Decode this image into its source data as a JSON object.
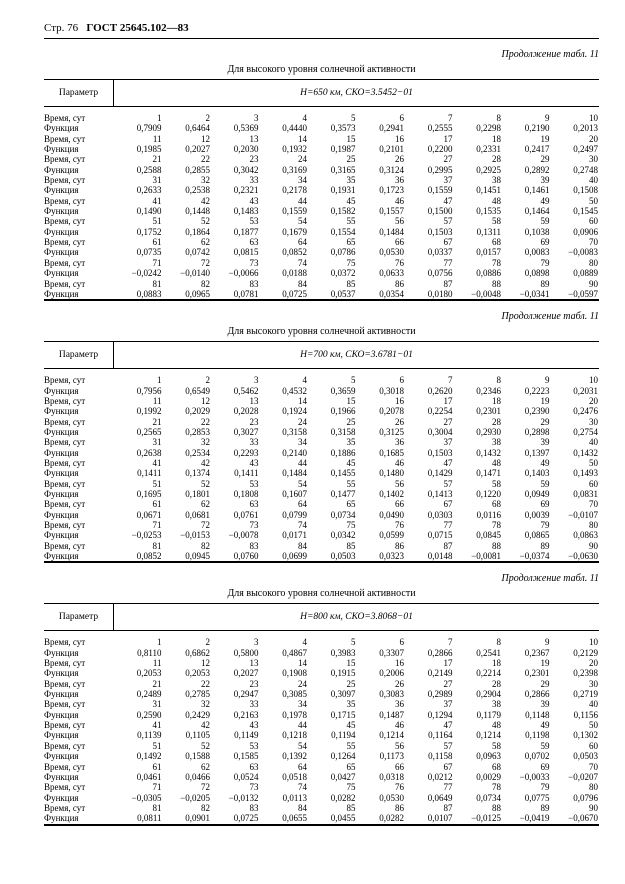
{
  "header": {
    "page_str": "Стр. 76",
    "gost": "ГОСТ 25645.102—83"
  },
  "cont_label": "Продолжение табл. 11",
  "sub_header": "Для высокого уровня солнечной активности",
  "blocks": [
    {
      "param_label": "Параметр",
      "h_label": "H=650 км, СКО=3.5452−01",
      "rows": [
        {
          "label": "Время, сут",
          "vals": [
            "1",
            "2",
            "3",
            "4",
            "5",
            "6",
            "7",
            "8",
            "9",
            "10"
          ]
        },
        {
          "label": "Функция",
          "vals": [
            "0,7909",
            "0,6464",
            "0,5369",
            "0,4440",
            "0,3573",
            "0,2941",
            "0,2555",
            "0,2298",
            "0,2190",
            "0,2013"
          ]
        },
        {
          "label": "Время, сут",
          "vals": [
            "11",
            "12",
            "13",
            "14",
            "15",
            "16",
            "17",
            "18",
            "19",
            "20"
          ]
        },
        {
          "label": "Функция",
          "vals": [
            "0,1985",
            "0,2027",
            "0,2030",
            "0,1932",
            "0,1987",
            "0,2101",
            "0,2200",
            "0,2331",
            "0,2417",
            "0,2497"
          ]
        },
        {
          "label": "Время, сут",
          "vals": [
            "21",
            "22",
            "23",
            "24",
            "25",
            "26",
            "27",
            "28",
            "29",
            "30"
          ]
        },
        {
          "label": "Функция",
          "vals": [
            "0,2588",
            "0,2855",
            "0,3042",
            "0,3169",
            "0,3165",
            "0,3124",
            "0,2995",
            "0,2925",
            "0,2892",
            "0,2748"
          ]
        },
        {
          "label": "Время, сут",
          "vals": [
            "31",
            "32",
            "33",
            "34",
            "35",
            "36",
            "37",
            "38",
            "39",
            "40"
          ]
        },
        {
          "label": "Функция",
          "vals": [
            "0,2633",
            "0,2538",
            "0,2321",
            "0,2178",
            "0,1931",
            "0,1723",
            "0,1559",
            "0,1451",
            "0,1461",
            "0,1508"
          ]
        },
        {
          "label": "Время, сут",
          "vals": [
            "41",
            "42",
            "43",
            "44",
            "45",
            "46",
            "47",
            "48",
            "49",
            "50"
          ]
        },
        {
          "label": "Функция",
          "vals": [
            "0,1490",
            "0,1448",
            "0,1483",
            "0,1559",
            "0,1582",
            "0,1557",
            "0,1500",
            "0,1535",
            "0,1464",
            "0,1545"
          ]
        },
        {
          "label": "Время, сут",
          "vals": [
            "51",
            "52",
            "53",
            "54",
            "55",
            "56",
            "57",
            "58",
            "59",
            "60"
          ]
        },
        {
          "label": "Функция",
          "vals": [
            "0,1752",
            "0,1864",
            "0,1877",
            "0,1679",
            "0,1554",
            "0,1484",
            "0,1503",
            "0,1311",
            "0,1038",
            "0,0906"
          ]
        },
        {
          "label": "Время, сут",
          "vals": [
            "61",
            "62",
            "63",
            "64",
            "65",
            "66",
            "67",
            "68",
            "69",
            "70"
          ]
        },
        {
          "label": "Функция",
          "vals": [
            "0,0735",
            "0,0742",
            "0,0815",
            "0,0852",
            "0,0786",
            "0,0530",
            "0,0337",
            "0,0157",
            "0,0083",
            "−0,0083"
          ]
        },
        {
          "label": "Время, сут",
          "vals": [
            "71",
            "72",
            "73",
            "74",
            "75",
            "76",
            "77",
            "78",
            "79",
            "80"
          ]
        },
        {
          "label": "Функция",
          "vals": [
            "−0,0242",
            "−0,0140",
            "−0,0066",
            "0,0188",
            "0,0372",
            "0,0633",
            "0,0756",
            "0,0886",
            "0,0898",
            "0,0889"
          ]
        },
        {
          "label": "Время, сут",
          "vals": [
            "81",
            "82",
            "83",
            "84",
            "85",
            "86",
            "87",
            "88",
            "89",
            "90"
          ]
        },
        {
          "label": "Функция",
          "vals": [
            "0,0883",
            "0,0965",
            "0,0781",
            "0,0725",
            "0,0537",
            "0,0354",
            "0,0180",
            "−0,0048",
            "−0,0341",
            "−0,0597"
          ]
        }
      ]
    },
    {
      "param_label": "Параметр",
      "h_label": "H=700 км, СКО=3.6781−01",
      "rows": [
        {
          "label": "Время, сут",
          "vals": [
            "1",
            "2",
            "3",
            "4",
            "5",
            "6",
            "7",
            "8",
            "9",
            "10"
          ]
        },
        {
          "label": "Функция",
          "vals": [
            "0,7956",
            "0,6549",
            "0,5462",
            "0,4532",
            "0,3659",
            "0,3018",
            "0,2620",
            "0,2346",
            "0,2223",
            "0,2031"
          ]
        },
        {
          "label": "Время, сут",
          "vals": [
            "11",
            "12",
            "13",
            "14",
            "15",
            "16",
            "17",
            "18",
            "19",
            "20"
          ]
        },
        {
          "label": "Функция",
          "vals": [
            "0,1992",
            "0,2029",
            "0,2028",
            "0,1924",
            "0,1966",
            "0,2078",
            "0,2254",
            "0,2301",
            "0,2390",
            "0,2476"
          ]
        },
        {
          "label": "Время, сут",
          "vals": [
            "21",
            "22",
            "23",
            "24",
            "25",
            "26",
            "27",
            "28",
            "29",
            "30"
          ]
        },
        {
          "label": "Функция",
          "vals": [
            "0,2565",
            "0,2853",
            "0,3027",
            "0,3158",
            "0,3158",
            "0,3125",
            "0,3004",
            "0,2930",
            "0,2898",
            "0,2754"
          ]
        },
        {
          "label": "Время, сут",
          "vals": [
            "31",
            "32",
            "33",
            "34",
            "35",
            "36",
            "37",
            "38",
            "39",
            "40"
          ]
        },
        {
          "label": "Функция",
          "vals": [
            "0,2638",
            "0,2534",
            "0,2293",
            "0,2140",
            "0,1886",
            "0,1685",
            "0,1503",
            "0,1432",
            "0,1397",
            "0,1432"
          ]
        },
        {
          "label": "Время, сут",
          "vals": [
            "41",
            "42",
            "43",
            "44",
            "45",
            "46",
            "47",
            "48",
            "49",
            "50"
          ]
        },
        {
          "label": "Функция",
          "vals": [
            "0,1411",
            "0,1374",
            "0,1411",
            "0,1484",
            "0,1455",
            "0,1480",
            "0,1429",
            "0,1471",
            "0,1403",
            "0,1493"
          ]
        },
        {
          "label": "Время, сут",
          "vals": [
            "51",
            "52",
            "53",
            "54",
            "55",
            "56",
            "57",
            "58",
            "59",
            "60"
          ]
        },
        {
          "label": "Функция",
          "vals": [
            "0,1695",
            "0,1801",
            "0,1808",
            "0,1607",
            "0,1477",
            "0,1402",
            "0,1413",
            "0,1220",
            "0,0949",
            "0,0831"
          ]
        },
        {
          "label": "Время, сут",
          "vals": [
            "61",
            "62",
            "63",
            "64",
            "65",
            "66",
            "67",
            "68",
            "69",
            "70"
          ]
        },
        {
          "label": "Функция",
          "vals": [
            "0,0671",
            "0,0681",
            "0,0761",
            "0,0799",
            "0,0734",
            "0,0490",
            "0,0303",
            "0,0116",
            "0,0039",
            "−0,0107"
          ]
        },
        {
          "label": "Время, сут",
          "vals": [
            "71",
            "72",
            "73",
            "74",
            "75",
            "76",
            "77",
            "78",
            "79",
            "80"
          ]
        },
        {
          "label": "Функция",
          "vals": [
            "−0,0253",
            "−0,0153",
            "−0,0078",
            "0,0171",
            "0,0342",
            "0,0599",
            "0,0715",
            "0,0845",
            "0,0865",
            "0,0863"
          ]
        },
        {
          "label": "Время, сут",
          "vals": [
            "81",
            "82",
            "83",
            "84",
            "85",
            "86",
            "87",
            "88",
            "89",
            "90"
          ]
        },
        {
          "label": "Функция",
          "vals": [
            "0,0852",
            "0,0945",
            "0,0760",
            "0,0699",
            "0,0503",
            "0,0323",
            "0,0148",
            "−0,0081",
            "−0,0374",
            "−0,0630"
          ]
        }
      ]
    },
    {
      "param_label": "Параметр",
      "h_label": "H=800 км, СКО=3.8068−01",
      "rows": [
        {
          "label": "Время, сут",
          "vals": [
            "1",
            "2",
            "3",
            "4",
            "5",
            "6",
            "7",
            "8",
            "9",
            "10"
          ]
        },
        {
          "label": "Функция",
          "vals": [
            "0,8110",
            "0,6862",
            "0,5800",
            "0,4867",
            "0,3983",
            "0,3307",
            "0,2866",
            "0,2541",
            "0,2367",
            "0,2129"
          ]
        },
        {
          "label": "Время, сут",
          "vals": [
            "11",
            "12",
            "13",
            "14",
            "15",
            "16",
            "17",
            "18",
            "19",
            "20"
          ]
        },
        {
          "label": "Функция",
          "vals": [
            "0,2053",
            "0,2053",
            "0,2027",
            "0,1908",
            "0,1915",
            "0,2006",
            "0,2149",
            "0,2214",
            "0,2301",
            "0,2398"
          ]
        },
        {
          "label": "Время, сут",
          "vals": [
            "21",
            "22",
            "23",
            "24",
            "25",
            "26",
            "27",
            "28",
            "29",
            "30"
          ]
        },
        {
          "label": "Функция",
          "vals": [
            "0,2489",
            "0,2785",
            "0,2947",
            "0,3085",
            "0,3097",
            "0,3083",
            "0,2989",
            "0,2904",
            "0,2866",
            "0,2719"
          ]
        },
        {
          "label": "Время, сут",
          "vals": [
            "31",
            "32",
            "33",
            "34",
            "35",
            "36",
            "37",
            "38",
            "39",
            "40"
          ]
        },
        {
          "label": "Функция",
          "vals": [
            "0,2590",
            "0,2429",
            "0,2163",
            "0,1978",
            "0,1715",
            "0,1487",
            "0,1294",
            "0,1179",
            "0,1148",
            "0,1156"
          ]
        },
        {
          "label": "Время, сут",
          "vals": [
            "41",
            "42",
            "43",
            "44",
            "45",
            "46",
            "47",
            "48",
            "49",
            "50"
          ]
        },
        {
          "label": "Функция",
          "vals": [
            "0,1139",
            "0,1105",
            "0,1149",
            "0,1218",
            "0,1194",
            "0,1214",
            "0,1164",
            "0,1214",
            "0,1198",
            "0,1302"
          ]
        },
        {
          "label": "Время, сут",
          "vals": [
            "51",
            "52",
            "53",
            "54",
            "55",
            "56",
            "57",
            "58",
            "59",
            "60"
          ]
        },
        {
          "label": "Функция",
          "vals": [
            "0,1492",
            "0,1588",
            "0,1585",
            "0,1392",
            "0,1264",
            "0,1173",
            "0,1158",
            "0,0963",
            "0,0702",
            "0,0503"
          ]
        },
        {
          "label": "Время, сут",
          "vals": [
            "61",
            "62",
            "63",
            "64",
            "65",
            "66",
            "67",
            "68",
            "69",
            "70"
          ]
        },
        {
          "label": "Функция",
          "vals": [
            "0,0461",
            "0,0466",
            "0,0524",
            "0,0518",
            "0,0427",
            "0,0318",
            "0,0212",
            "0,0029",
            "−0,0033",
            "−0,0207"
          ]
        },
        {
          "label": "Время, сут",
          "vals": [
            "71",
            "72",
            "73",
            "74",
            "75",
            "76",
            "77",
            "78",
            "79",
            "80"
          ]
        },
        {
          "label": "Функция",
          "vals": [
            "−0,0305",
            "−0,0205",
            "−0,0132",
            "0,0113",
            "0,0282",
            "0,0530",
            "0,0649",
            "0,0734",
            "0,0775",
            "0,0796"
          ]
        },
        {
          "label": "Время, сут",
          "vals": [
            "81",
            "82",
            "83",
            "84",
            "85",
            "86",
            "87",
            "88",
            "89",
            "90"
          ]
        },
        {
          "label": "Функция",
          "vals": [
            "0,0811",
            "0,0901",
            "0,0725",
            "0,0655",
            "0,0455",
            "0,0282",
            "0,0107",
            "−0,0125",
            "−0,0419",
            "−0,0670"
          ]
        }
      ]
    }
  ]
}
